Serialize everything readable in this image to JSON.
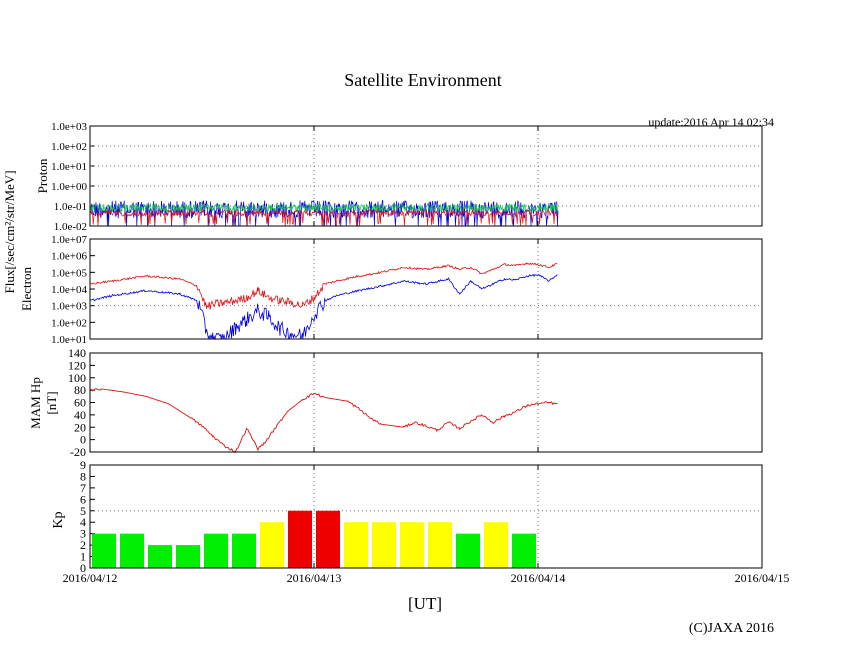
{
  "page": {
    "title": "Satellite Environment",
    "update": "update:2016 Apr 14 02:34",
    "copyright": "(C)JAXA 2016",
    "x_unit_label": "[UT]"
  },
  "colors": {
    "red": "#e01010",
    "blue": "#0000e0",
    "green": "#10c050",
    "kp_green": "#00ee00",
    "kp_yellow": "#ffff00",
    "kp_red": "#ee0000",
    "grid": "#777777"
  },
  "chart_data": [
    {
      "type": "line",
      "panel": "proton",
      "title": "",
      "ylabel": "Proton",
      "shared_ylabel": "Flux[/sec/cm^2/str/MeV]",
      "yscale": "log",
      "ylim": [
        0.01,
        1000
      ],
      "yticks": [
        "1.0e+03",
        "1.0e+02",
        "1.0e+01",
        "1.0e+00",
        "1.0e-01",
        "1.0e-02"
      ],
      "xlim": [
        0,
        3
      ],
      "xticks": [
        0,
        1,
        2,
        3
      ],
      "data_end": 2.09,
      "series": [
        {
          "name": "proton channel 1",
          "color": "blue",
          "level": 0.085
        },
        {
          "name": "proton channel 2",
          "color": "green",
          "level": 0.09
        },
        {
          "name": "proton channel 3",
          "color": "red",
          "level": 0.05
        }
      ]
    },
    {
      "type": "line",
      "panel": "electron",
      "ylabel": "Electron",
      "yscale": "log",
      "ylim": [
        10,
        10000000
      ],
      "yticks": [
        "1.0e+07",
        "1.0e+06",
        "1.0e+05",
        "1.0e+04",
        "1.0e+03",
        "1.0e+02",
        "1.0e+01"
      ],
      "xlim": [
        0,
        3
      ],
      "series": [
        {
          "name": "electron high flux",
          "color": "red",
          "x": [
            0,
            0.1,
            0.25,
            0.4,
            0.48,
            0.52,
            0.55,
            0.6,
            0.65,
            0.7,
            0.75,
            0.8,
            0.85,
            0.9,
            0.95,
            1.0,
            1.05,
            1.1,
            1.2,
            1.3,
            1.4,
            1.5,
            1.6,
            1.65,
            1.7,
            1.75,
            1.8,
            1.85,
            1.9,
            1.95,
            2.0,
            2.05,
            2.09
          ],
          "y": [
            20000,
            30000,
            60000,
            40000,
            15000,
            800,
            1200,
            1500,
            2000,
            3000,
            8000,
            3000,
            2000,
            1500,
            1000,
            3000,
            20000,
            30000,
            60000,
            100000,
            200000,
            150000,
            250000,
            150000,
            200000,
            80000,
            150000,
            300000,
            250000,
            350000,
            300000,
            200000,
            350000
          ]
        },
        {
          "name": "electron low flux",
          "color": "blue",
          "x": [
            0,
            0.1,
            0.25,
            0.4,
            0.48,
            0.52,
            0.55,
            0.6,
            0.65,
            0.7,
            0.75,
            0.8,
            0.85,
            0.9,
            0.95,
            1.0,
            1.05,
            1.1,
            1.2,
            1.3,
            1.4,
            1.5,
            1.6,
            1.65,
            1.7,
            1.75,
            1.8,
            1.85,
            1.9,
            1.95,
            2.0,
            2.05,
            2.09
          ],
          "y": [
            2000,
            4000,
            8000,
            5000,
            2000,
            30,
            10,
            10,
            50,
            150,
            500,
            200,
            40,
            20,
            15,
            300,
            2000,
            4000,
            8000,
            15000,
            30000,
            20000,
            40000,
            5000,
            30000,
            10000,
            20000,
            40000,
            35000,
            60000,
            70000,
            30000,
            80000
          ]
        }
      ]
    },
    {
      "type": "line",
      "panel": "magnetometer",
      "ylabel": "MAM Hp",
      "ylabel2": "[nT]",
      "ylim": [
        -20,
        140
      ],
      "yticks": [
        140,
        120,
        100,
        80,
        60,
        40,
        20,
        0,
        -20
      ],
      "xlim": [
        0,
        3
      ],
      "series": [
        {
          "name": "MAM Hp",
          "color": "red",
          "x": [
            0,
            0.05,
            0.15,
            0.25,
            0.35,
            0.45,
            0.5,
            0.55,
            0.6,
            0.65,
            0.7,
            0.75,
            0.78,
            0.83,
            0.88,
            0.95,
            1.0,
            1.05,
            1.15,
            1.2,
            1.25,
            1.3,
            1.4,
            1.45,
            1.5,
            1.55,
            1.6,
            1.65,
            1.7,
            1.75,
            1.8,
            1.85,
            1.9,
            1.95,
            2.0,
            2.05,
            2.09
          ],
          "y": [
            80,
            82,
            77,
            70,
            58,
            35,
            22,
            5,
            -10,
            -20,
            18,
            -15,
            -5,
            20,
            45,
            65,
            75,
            68,
            62,
            50,
            35,
            25,
            20,
            28,
            22,
            15,
            28,
            18,
            30,
            40,
            28,
            38,
            45,
            55,
            58,
            60,
            57
          ]
        }
      ]
    },
    {
      "type": "bar",
      "panel": "kp",
      "ylabel": "Kp",
      "ylim": [
        0,
        9
      ],
      "yticks": [
        9,
        8,
        7,
        6,
        5,
        4,
        3,
        2,
        1,
        0
      ],
      "xlim": [
        0,
        3
      ],
      "xticks": [
        "2016/04/12",
        "2016/04/13",
        "2016/04/14",
        "2016/04/15"
      ],
      "bar_width_days": 0.125,
      "values": [
        3,
        3,
        2,
        2,
        3,
        3,
        4,
        5,
        5,
        4,
        4,
        4,
        4,
        3,
        4,
        3
      ],
      "levels": [
        "green",
        "green",
        "green",
        "green",
        "green",
        "green",
        "yellow",
        "red",
        "red",
        "yellow",
        "yellow",
        "yellow",
        "yellow",
        "green",
        "yellow",
        "green"
      ]
    }
  ]
}
